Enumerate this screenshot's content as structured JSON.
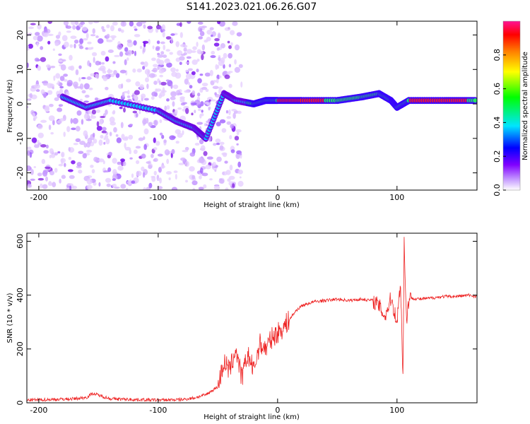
{
  "title": "S141.2023.021.06.26.G07",
  "chart_data": [
    {
      "type": "heatmap",
      "xlabel": "Height of straight line (km)",
      "ylabel": "Frequency (Hz)",
      "xlim": [
        -210,
        167
      ],
      "ylim": [
        -25,
        24
      ],
      "xticks": [
        -200,
        -100,
        0,
        100
      ],
      "yticks": [
        -20,
        -10,
        0,
        10,
        20
      ],
      "colorbar": {
        "label": "Normalized spectral amplitude",
        "range": [
          0,
          1
        ],
        "ticks": [
          0.0,
          0.2,
          0.4,
          0.6,
          0.8
        ],
        "colors": [
          "#ffffff",
          "#a000ff",
          "#0000ff",
          "#00e5ff",
          "#00ff00",
          "#ffff00",
          "#ff8000",
          "#ff0000",
          "#ff1493"
        ]
      },
      "ridge": {
        "description_free_points": [
          {
            "x": -180,
            "y": 2
          },
          {
            "x": -160,
            "y": -1
          },
          {
            "x": -140,
            "y": 1
          },
          {
            "x": -100,
            "y": -2
          },
          {
            "x": -85,
            "y": -5
          },
          {
            "x": -70,
            "y": -7
          },
          {
            "x": -60,
            "y": -10
          },
          {
            "x": -45,
            "y": 3
          },
          {
            "x": -35,
            "y": 1
          },
          {
            "x": -20,
            "y": 0
          },
          {
            "x": -10,
            "y": 1
          },
          {
            "x": 0,
            "y": 1
          },
          {
            "x": 20,
            "y": 1
          },
          {
            "x": 50,
            "y": 1
          },
          {
            "x": 70,
            "y": 2
          },
          {
            "x": 85,
            "y": 3
          },
          {
            "x": 95,
            "y": 1
          },
          {
            "x": 100,
            "y": -1
          },
          {
            "x": 110,
            "y": 1
          },
          {
            "x": 140,
            "y": 1
          },
          {
            "x": 167,
            "y": 1
          }
        ]
      }
    },
    {
      "type": "line",
      "xlabel": "Height of straight line (km)",
      "ylabel": "SNR (10 * v/v)",
      "xlim": [
        -210,
        167
      ],
      "ylim": [
        0,
        630
      ],
      "xticks": [
        -200,
        -100,
        0,
        100
      ],
      "yticks": [
        0,
        200,
        400,
        600
      ],
      "color": "#ee2222",
      "series": [
        {
          "x": [
            -210,
            -190,
            -170,
            -160,
            -155,
            -140,
            -120,
            -100,
            -80,
            -70,
            -60,
            -50,
            -45,
            -40,
            -35,
            -30,
            -25,
            -20,
            -15,
            -10,
            -5,
            0,
            5,
            10,
            15,
            20,
            30,
            40,
            50,
            60,
            70,
            80,
            85,
            90,
            95,
            100,
            103,
            105,
            106,
            108,
            110,
            120,
            130,
            140,
            150,
            160,
            167
          ],
          "y": [
            10,
            12,
            15,
            20,
            35,
            15,
            12,
            10,
            12,
            18,
            30,
            60,
            150,
            120,
            200,
            90,
            180,
            120,
            220,
            200,
            240,
            260,
            280,
            310,
            340,
            360,
            375,
            380,
            385,
            380,
            385,
            380,
            360,
            320,
            390,
            300,
            450,
            90,
            600,
            300,
            390,
            385,
            390,
            395,
            395,
            400,
            395
          ]
        }
      ]
    }
  ]
}
